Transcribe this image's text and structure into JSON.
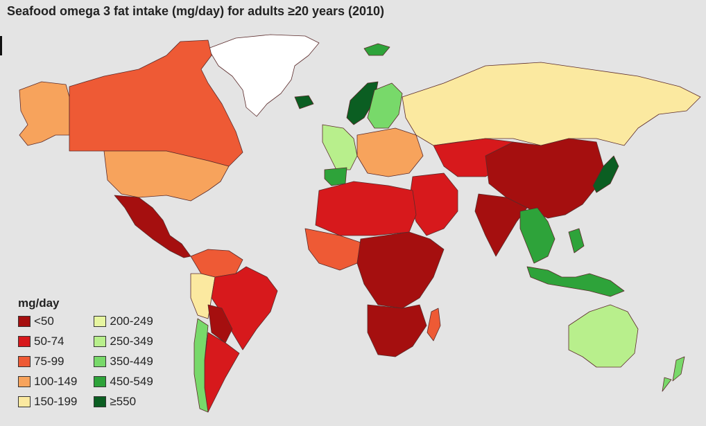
{
  "title": "Seafood omega 3 fat intake (mg/day) for adults ≥20 years (2010)",
  "legend": {
    "title": "mg/day",
    "items": [
      {
        "label": "<50",
        "color": "#a50f0f"
      },
      {
        "label": "50-74",
        "color": "#d7191c"
      },
      {
        "label": "75-99",
        "color": "#ee5a35"
      },
      {
        "label": "100-149",
        "color": "#f7a35c"
      },
      {
        "label": "150-199",
        "color": "#fbe9a0"
      },
      {
        "label": "200-249",
        "color": "#e6f5a0"
      },
      {
        "label": "250-349",
        "color": "#b8ef8c"
      },
      {
        "label": "350-449",
        "color": "#78d96a"
      },
      {
        "label": "450-549",
        "color": "#2ea33a"
      },
      {
        "label": "≥550",
        "color": "#0b5e22"
      }
    ]
  },
  "regions": [
    {
      "name": "greenland",
      "color": "#ffffff"
    },
    {
      "name": "canada",
      "color": "#ee5a35"
    },
    {
      "name": "alaska",
      "color": "#f7a35c"
    },
    {
      "name": "usa",
      "color": "#f7a35c"
    },
    {
      "name": "mexico-central-america",
      "color": "#a50f0f"
    },
    {
      "name": "colombia-venezuela",
      "color": "#ee5a35"
    },
    {
      "name": "brazil",
      "color": "#d7191c"
    },
    {
      "name": "peru",
      "color": "#fbe9a0"
    },
    {
      "name": "bolivia-paraguay",
      "color": "#a50f0f"
    },
    {
      "name": "argentina",
      "color": "#d7191c"
    },
    {
      "name": "chile",
      "color": "#78d96a"
    },
    {
      "name": "russia",
      "color": "#fbe9a0"
    },
    {
      "name": "scandinavia",
      "color": "#78d96a"
    },
    {
      "name": "norway-iceland",
      "color": "#0b5e22"
    },
    {
      "name": "western-europe",
      "color": "#b8ef8c"
    },
    {
      "name": "eastern-europe",
      "color": "#f7a35c"
    },
    {
      "name": "iberia",
      "color": "#2ea33a"
    },
    {
      "name": "north-africa",
      "color": "#d7191c"
    },
    {
      "name": "west-africa",
      "color": "#ee5a35"
    },
    {
      "name": "central-africa",
      "color": "#a50f0f"
    },
    {
      "name": "southern-africa",
      "color": "#a50f0f"
    },
    {
      "name": "madagascar",
      "color": "#ee5a35"
    },
    {
      "name": "middle-east",
      "color": "#d7191c"
    },
    {
      "name": "central-asia",
      "color": "#d7191c"
    },
    {
      "name": "china",
      "color": "#a50f0f"
    },
    {
      "name": "india",
      "color": "#a50f0f"
    },
    {
      "name": "southeast-asia",
      "color": "#2ea33a"
    },
    {
      "name": "japan",
      "color": "#0b5e22"
    },
    {
      "name": "indonesia-philippines",
      "color": "#2ea33a"
    },
    {
      "name": "australia",
      "color": "#b8ef8c"
    },
    {
      "name": "new-zealand",
      "color": "#78d96a"
    },
    {
      "name": "svalbard",
      "color": "#2ea33a"
    }
  ]
}
